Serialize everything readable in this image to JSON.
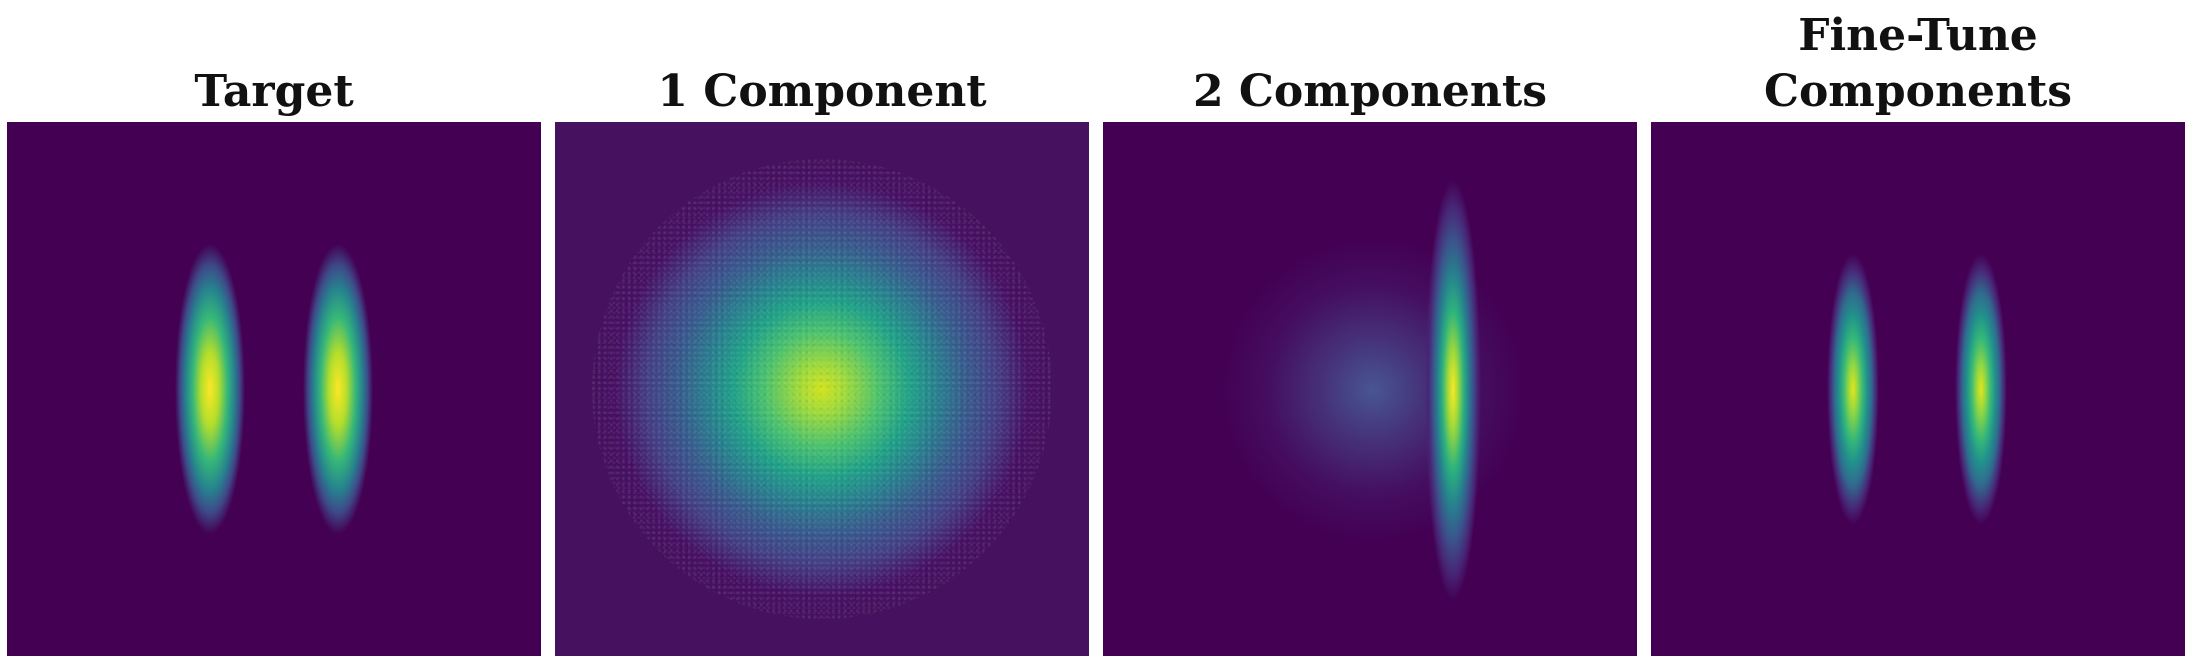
{
  "panels": [
    {
      "title": "Target"
    },
    {
      "title": "1 Component"
    },
    {
      "title": "2 Components"
    },
    {
      "title": "Fine-Tune\nComponents"
    }
  ],
  "colors": {
    "background": "#440154",
    "low": "#3b528b",
    "mid": "#21918c",
    "high": "#5ec962",
    "peak": "#fde725"
  }
}
